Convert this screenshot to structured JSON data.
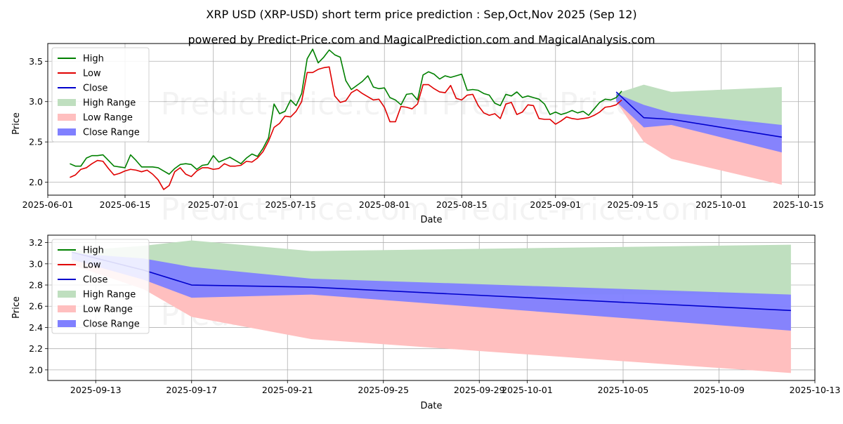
{
  "header": {
    "title": "XRP USD (XRP-USD) short term price prediction : Sep,Oct,Nov 2025 (Sep 12)",
    "subtitle": "powered by Predict-Price.com and MagicalPrediction.com and MagicalAnalysis.com"
  },
  "watermark": "Predict-Price.com",
  "colors": {
    "high": "#008000",
    "low": "#e00000",
    "close": "#0000cc",
    "high_range": "#bfdfbf",
    "low_range": "#ffbfbf",
    "close_range": "#8080ff"
  },
  "chart_data": [
    {
      "type": "line",
      "xlabel": "Date",
      "ylabel": "Price",
      "xlim": [
        "2025-06-01",
        "2025-10-18"
      ],
      "ylim": [
        1.84,
        3.72
      ],
      "grid": true,
      "legend_position": "top-left",
      "x_ticks": [
        "2025-06-01",
        "2025-06-15",
        "2025-07-01",
        "2025-07-15",
        "2025-08-01",
        "2025-08-15",
        "2025-09-01",
        "2025-09-15",
        "2025-10-01",
        "2025-10-15"
      ],
      "y_ticks": [
        2.0,
        2.5,
        3.0,
        3.5
      ],
      "legend": [
        "High",
        "Low",
        "Close",
        "High Range",
        "Low Range",
        "Close Range"
      ],
      "history": {
        "start_date": "2025-06-05",
        "high": [
          2.23,
          2.2,
          2.2,
          2.3,
          2.33,
          2.33,
          2.34,
          2.27,
          2.2,
          2.19,
          2.18,
          2.34,
          2.27,
          2.19,
          2.19,
          2.19,
          2.18,
          2.14,
          2.1,
          2.17,
          2.22,
          2.23,
          2.22,
          2.16,
          2.21,
          2.22,
          2.33,
          2.25,
          2.28,
          2.31,
          2.27,
          2.23,
          2.3,
          2.35,
          2.32,
          2.42,
          2.55,
          2.97,
          2.85,
          2.88,
          3.02,
          2.95,
          3.1,
          3.53,
          3.65,
          3.48,
          3.55,
          3.64,
          3.58,
          3.55,
          3.26,
          3.15,
          3.2,
          3.25,
          3.32,
          3.18,
          3.16,
          3.17,
          3.05,
          3.02,
          2.96,
          3.09,
          3.1,
          3.02,
          3.33,
          3.37,
          3.34,
          3.28,
          3.32,
          3.3,
          3.32,
          3.34,
          3.14,
          3.15,
          3.14,
          3.1,
          3.08,
          2.98,
          2.95,
          3.09,
          3.07,
          3.12,
          3.05,
          3.07,
          3.05,
          3.03,
          2.97,
          2.84,
          2.87,
          2.84,
          2.86,
          2.89,
          2.86,
          2.88,
          2.83,
          2.91,
          2.99,
          3.03,
          3.02,
          3.05,
          3.13
        ],
        "low": [
          2.06,
          2.09,
          2.16,
          2.18,
          2.23,
          2.27,
          2.26,
          2.17,
          2.09,
          2.11,
          2.14,
          2.16,
          2.15,
          2.13,
          2.15,
          2.1,
          2.03,
          1.91,
          1.96,
          2.13,
          2.18,
          2.1,
          2.07,
          2.14,
          2.18,
          2.18,
          2.16,
          2.17,
          2.23,
          2.2,
          2.2,
          2.21,
          2.26,
          2.25,
          2.3,
          2.38,
          2.51,
          2.68,
          2.73,
          2.82,
          2.81,
          2.88,
          3.0,
          3.36,
          3.36,
          3.4,
          3.42,
          3.43,
          3.07,
          2.99,
          3.01,
          3.11,
          3.15,
          3.1,
          3.06,
          3.02,
          3.03,
          2.93,
          2.75,
          2.75,
          2.94,
          2.93,
          2.91,
          2.97,
          3.21,
          3.21,
          3.16,
          3.12,
          3.11,
          3.2,
          3.04,
          3.02,
          3.08,
          3.09,
          2.95,
          2.86,
          2.83,
          2.85,
          2.79,
          2.97,
          2.99,
          2.84,
          2.87,
          2.96,
          2.95,
          2.79,
          2.78,
          2.78,
          2.72,
          2.76,
          2.81,
          2.79,
          2.78,
          2.79,
          2.8,
          2.83,
          2.87,
          2.93,
          2.94,
          2.96,
          3.02
        ]
      },
      "forecast": {
        "dates": [
          "2025-09-12",
          "2025-09-17",
          "2025-09-22",
          "2025-10-12"
        ],
        "close": [
          3.12,
          2.8,
          2.78,
          2.56
        ],
        "close_range_high": [
          3.1,
          2.96,
          2.86,
          2.71
        ],
        "close_range_low": [
          3.0,
          2.68,
          2.71,
          2.37
        ],
        "high_range_high": [
          3.1,
          3.21,
          3.12,
          3.18
        ],
        "high_range_low": [
          3.0,
          2.7,
          2.71,
          2.71
        ],
        "low_range_high": [
          3.05,
          2.8,
          2.78,
          2.56
        ],
        "low_range_low": [
          3.0,
          2.5,
          2.29,
          1.97
        ]
      }
    },
    {
      "type": "line",
      "xlabel": "Date",
      "ylabel": "Price",
      "xlim": [
        "2025-09-11",
        "2025-10-13"
      ],
      "ylim": [
        1.9,
        3.27
      ],
      "grid": true,
      "legend_position": "top-left",
      "x_ticks": [
        "2025-09-13",
        "2025-09-17",
        "2025-09-21",
        "2025-09-25",
        "2025-09-29",
        "2025-10-01",
        "2025-10-05",
        "2025-10-09",
        "2025-10-13"
      ],
      "y_ticks": [
        2.0,
        2.2,
        2.4,
        2.6,
        2.8,
        3.0,
        3.2
      ],
      "legend": [
        "High",
        "Low",
        "Close",
        "High Range",
        "Low Range",
        "Close Range"
      ],
      "forecast": {
        "dates": [
          "2025-09-12",
          "2025-09-15",
          "2025-09-17",
          "2025-09-22",
          "2025-10-12"
        ],
        "close": [
          3.11,
          2.94,
          2.8,
          2.78,
          2.56
        ],
        "close_range_high": [
          3.1,
          3.05,
          2.97,
          2.86,
          2.71
        ],
        "close_range_low": [
          3.04,
          2.85,
          2.68,
          2.71,
          2.37
        ],
        "high_range_high": [
          3.12,
          3.17,
          3.22,
          3.12,
          3.18
        ],
        "high_range_low": [
          3.04,
          2.86,
          2.69,
          2.71,
          2.71
        ],
        "low_range_high": [
          3.05,
          2.88,
          2.8,
          2.78,
          2.56
        ],
        "low_range_low": [
          2.99,
          2.76,
          2.5,
          2.29,
          1.97
        ]
      }
    }
  ]
}
